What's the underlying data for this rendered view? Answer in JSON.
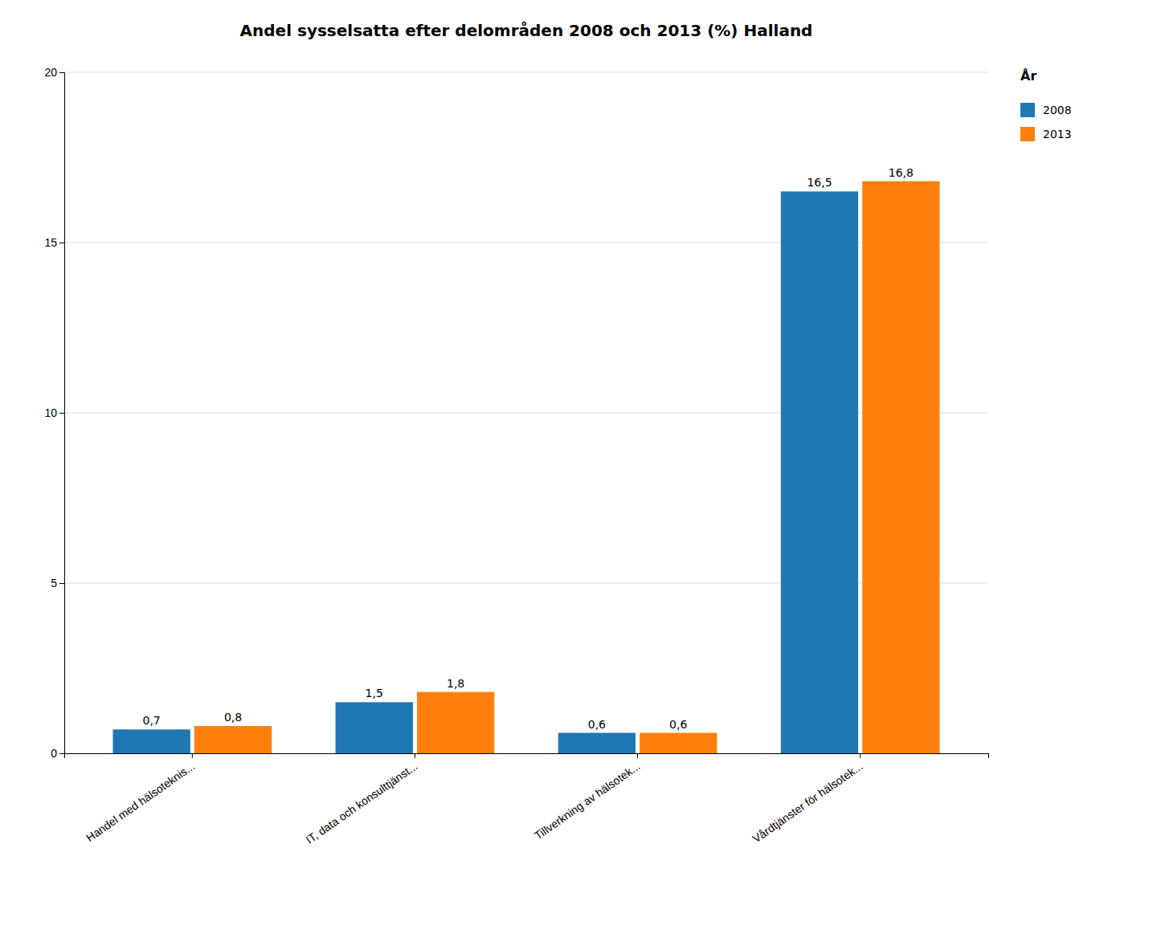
{
  "chart_data": {
    "type": "bar",
    "title": "Andel sysselsatta efter delområden 2008 och 2013 (%) Halland",
    "categories": [
      "Handel med hälsoteknis...",
      "IT, data och konsulttjänst...",
      "Tillverkning av hälsotek...",
      "Vårdtjänster för hälsotek..."
    ],
    "series": [
      {
        "name": "2008",
        "values": [
          0.7,
          1.5,
          0.6,
          16.5
        ],
        "value_labels": [
          "0,7",
          "1,5",
          "0,6",
          "16,5"
        ]
      },
      {
        "name": "2013",
        "values": [
          0.8,
          1.8,
          0.6,
          16.8
        ],
        "value_labels": [
          "0,8",
          "1,8",
          "0,6",
          "16,8"
        ]
      }
    ],
    "legend_title": "År",
    "legend": "right",
    "ylim": [
      0,
      20
    ],
    "yticks": [
      0,
      5,
      10,
      15,
      20
    ],
    "grid": true,
    "data_labels": true
  }
}
